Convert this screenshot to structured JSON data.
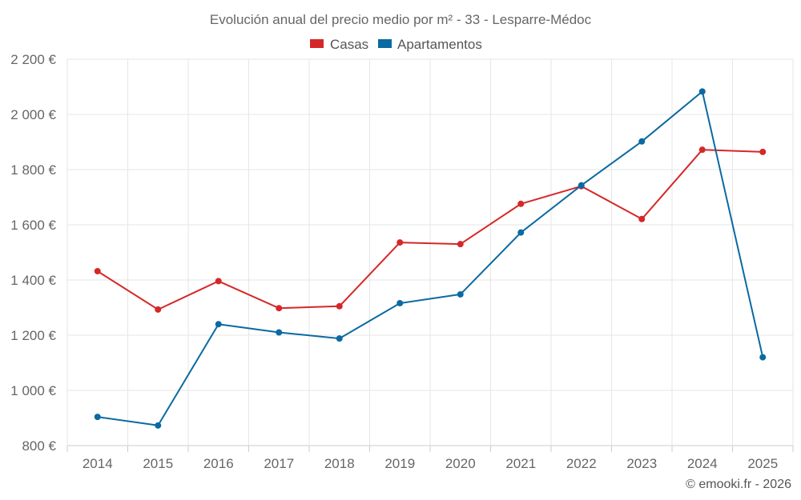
{
  "chart_data": {
    "type": "line",
    "title": "Evolución anual del precio medio por m² - 33 - Lesparre-Médoc",
    "categories": [
      "2014",
      "2015",
      "2016",
      "2017",
      "2018",
      "2019",
      "2020",
      "2021",
      "2022",
      "2023",
      "2024",
      "2025"
    ],
    "series": [
      {
        "name": "Casas",
        "color": "#d62728",
        "values": [
          1432,
          1293,
          1396,
          1298,
          1305,
          1536,
          1530,
          1676,
          1740,
          1621,
          1872,
          1864
        ]
      },
      {
        "name": "Apartamentos",
        "color": "#0a6aa1",
        "values": [
          904,
          873,
          1240,
          1210,
          1188,
          1316,
          1348,
          1572,
          1743,
          1902,
          2083,
          1120
        ]
      }
    ],
    "ylim": [
      800,
      2200
    ],
    "yticks": [
      800,
      1000,
      1200,
      1400,
      1600,
      1800,
      2000,
      2200
    ],
    "ytick_labels": [
      "800 €",
      "1 000 €",
      "1 200 €",
      "1 400 €",
      "1 600 €",
      "1 800 €",
      "2 000 €",
      "2 200 €"
    ],
    "xlabel": "",
    "ylabel": "",
    "grid": true,
    "legend": "top-center"
  },
  "credit": "© emooki.fr - 2026"
}
